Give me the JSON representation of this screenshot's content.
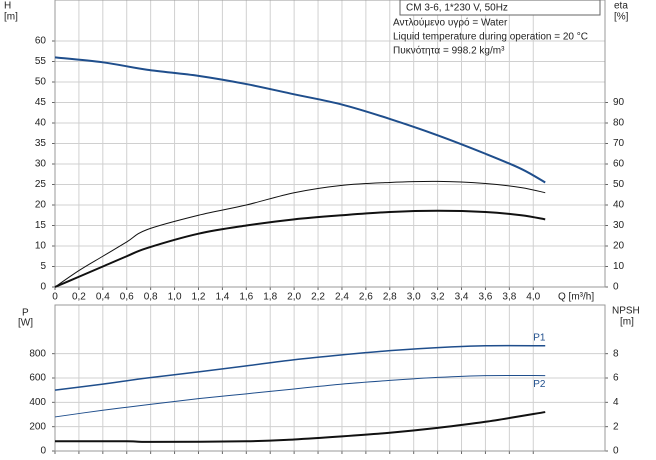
{
  "chart_data": [
    {
      "type": "line",
      "title": "CM 3-6, 1*230 V, 50Hz",
      "annotations": [
        "Αντλούμενο υγρό = Water",
        "Liquid temperature during operation = 20 °C",
        "Πυκνότητα = 998.2 kg/m³"
      ],
      "ylabel": "H",
      "yunit": "[m]",
      "y2label": "eta",
      "y2unit": "[%]",
      "xlabel": "Q [m³/h]",
      "xlim": [
        0,
        4.6
      ],
      "xticks": [
        0,
        {
          "value": 0.2,
          "label": "0,2"
        },
        {
          "value": 0.4,
          "label": "0,4"
        },
        {
          "value": 0.6,
          "label": "0,6"
        },
        {
          "value": 0.8,
          "label": "0,8"
        },
        {
          "value": 1.0,
          "label": "1,0"
        },
        {
          "value": 1.2,
          "label": "1,2"
        },
        {
          "value": 1.4,
          "label": "1,4"
        },
        {
          "value": 1.6,
          "label": "1,6"
        },
        {
          "value": 1.8,
          "label": "1,8"
        },
        {
          "value": 2.0,
          "label": "2,0"
        },
        {
          "value": 2.2,
          "label": "2,2"
        },
        {
          "value": 2.4,
          "label": "2,4"
        },
        {
          "value": 2.6,
          "label": "2,6"
        },
        {
          "value": 2.8,
          "label": "2,8"
        },
        {
          "value": 3.0,
          "label": "3,0"
        },
        {
          "value": 3.2,
          "label": "3,2"
        },
        {
          "value": 3.4,
          "label": "3,4"
        },
        {
          "value": 3.6,
          "label": "3,6"
        },
        {
          "value": 3.8,
          "label": "3,8"
        },
        {
          "value": 4.0,
          "label": "4,0"
        }
      ],
      "ylim": [
        0,
        70
      ],
      "yticks": [
        0,
        5,
        10,
        15,
        20,
        25,
        30,
        35,
        40,
        45,
        50,
        55,
        60
      ],
      "y2lim": [
        0,
        140
      ],
      "y2ticks": [
        0,
        10,
        20,
        30,
        40,
        50,
        60,
        70,
        80,
        90
      ],
      "grid": true,
      "series": [
        {
          "color": "#1f4e8c",
          "line_width": 2,
          "x": [
            0,
            0.4,
            0.77,
            1.2,
            1.6,
            2.0,
            2.4,
            2.8,
            3.2,
            3.6,
            3.9,
            4.1
          ],
          "values": [
            56,
            54.8,
            53,
            51.5,
            49.5,
            47,
            44.5,
            41,
            37,
            32.5,
            28.8,
            25.5
          ]
        },
        {
          "color": "#111111",
          "line_width": 1,
          "axis": "y2",
          "x": [
            0,
            0.2,
            0.4,
            0.6,
            0.77,
            1.2,
            1.6,
            2.0,
            2.4,
            2.8,
            3.2,
            3.6,
            3.9,
            4.1
          ],
          "values": [
            0,
            8,
            15,
            22,
            28,
            35,
            40,
            46,
            49.6,
            51,
            51.5,
            50.5,
            48.5,
            46
          ]
        },
        {
          "color": "#111111",
          "line_width": 2,
          "axis": "y2",
          "x": [
            0,
            0.2,
            0.4,
            0.6,
            0.77,
            1.2,
            1.6,
            2.0,
            2.4,
            2.8,
            3.2,
            3.6,
            3.9,
            4.1
          ],
          "values": [
            0,
            5,
            10,
            15,
            19,
            26,
            30,
            33,
            35,
            36.6,
            37.2,
            36.6,
            35,
            33
          ]
        }
      ]
    },
    {
      "type": "line",
      "ylabel": "P",
      "yunit": "[W]",
      "y2label": "NPSH",
      "y2unit": "[m]",
      "xlim": [
        0,
        4.6
      ],
      "xticks": [
        0,
        0.2,
        0.4,
        0.6,
        0.8,
        1.0,
        1.2,
        1.4,
        1.6,
        1.8,
        2.0,
        2.2,
        2.4,
        2.6,
        2.8,
        3.0,
        3.2,
        3.4,
        3.6,
        3.8,
        4.0
      ],
      "ylim": [
        0,
        1200
      ],
      "yticks": [
        0,
        200,
        400,
        600,
        800
      ],
      "y2lim": [
        0,
        12
      ],
      "y2ticks": [
        0,
        2,
        4,
        6,
        8
      ],
      "grid": true,
      "series": [
        {
          "name": "P1",
          "color": "#1f4e8c",
          "line_width": 1.5,
          "x": [
            0,
            0.4,
            0.77,
            1.2,
            1.6,
            2.0,
            2.4,
            2.8,
            3.2,
            3.6,
            4.1
          ],
          "values": [
            500,
            550,
            600,
            650,
            700,
            750,
            790,
            825,
            850,
            865,
            865
          ]
        },
        {
          "name": "P2",
          "color": "#1f4e8c",
          "line_width": 1,
          "x": [
            0,
            0.4,
            0.77,
            1.2,
            1.6,
            2.0,
            2.4,
            2.8,
            3.2,
            3.6,
            4.1
          ],
          "values": [
            280,
            335,
            380,
            430,
            470,
            510,
            550,
            580,
            605,
            620,
            620
          ]
        },
        {
          "color": "#111111",
          "line_width": 2,
          "axis": "y2",
          "x": [
            0,
            0.6,
            0.8,
            1.6,
            2.0,
            2.4,
            2.8,
            3.2,
            3.6,
            4.1
          ],
          "values": [
            0.8,
            0.8,
            0.75,
            0.8,
            0.95,
            1.2,
            1.5,
            1.9,
            2.4,
            3.2
          ]
        }
      ]
    }
  ]
}
